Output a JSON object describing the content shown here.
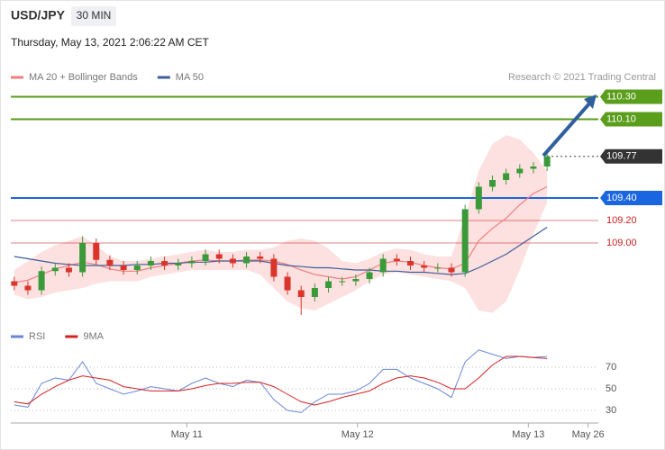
{
  "header": {
    "symbol": "USD/JPY",
    "interval": "30 MIN",
    "datetime": "Thursday, May 13, 2021 2:06:22 AM CET",
    "credit": "Research © 2021 Trading Central"
  },
  "chart_data": [
    {
      "type": "candlestick",
      "x": [
        9.99,
        10.07,
        10.15,
        10.23,
        10.31,
        10.39,
        10.47,
        10.55,
        10.63,
        10.71,
        10.79,
        10.87,
        10.95,
        11.03,
        11.11,
        11.19,
        11.27,
        11.35,
        11.43,
        11.51,
        11.59,
        11.67,
        11.75,
        11.83,
        11.91,
        11.99,
        12.07,
        12.15,
        12.23,
        12.31,
        12.39,
        12.47,
        12.55,
        12.63,
        12.71,
        12.79,
        12.87,
        12.95,
        13.03,
        13.11
      ],
      "xlim": [
        9.97,
        13.41
      ],
      "open": [
        108.66,
        108.62,
        108.58,
        108.75,
        108.78,
        108.74,
        109.0,
        108.85,
        108.8,
        108.76,
        108.8,
        108.84,
        108.8,
        108.82,
        108.84,
        108.9,
        108.86,
        108.82,
        108.88,
        108.86,
        108.7,
        108.58,
        108.52,
        108.6,
        108.66,
        108.66,
        108.68,
        108.74,
        108.86,
        108.84,
        108.8,
        108.78,
        108.78,
        108.74,
        109.3,
        109.5,
        109.56,
        109.62,
        109.66,
        109.68
      ],
      "high": [
        108.7,
        108.66,
        108.79,
        108.82,
        108.82,
        109.06,
        109.04,
        108.89,
        108.84,
        108.84,
        108.88,
        108.88,
        108.86,
        108.88,
        108.94,
        108.94,
        108.9,
        108.92,
        108.92,
        108.9,
        108.74,
        108.62,
        108.64,
        108.7,
        108.7,
        108.72,
        108.78,
        108.9,
        108.9,
        108.88,
        108.84,
        108.82,
        108.82,
        109.34,
        109.54,
        109.6,
        109.66,
        109.7,
        109.72,
        109.8
      ],
      "low": [
        108.58,
        108.54,
        108.54,
        108.71,
        108.7,
        108.7,
        108.81,
        108.76,
        108.72,
        108.72,
        108.76,
        108.76,
        108.76,
        108.78,
        108.8,
        108.82,
        108.78,
        108.78,
        108.82,
        108.66,
        108.54,
        108.36,
        108.48,
        108.56,
        108.62,
        108.62,
        108.64,
        108.7,
        108.8,
        108.76,
        108.74,
        108.74,
        108.7,
        108.7,
        109.26,
        109.46,
        109.52,
        109.58,
        109.62,
        109.64
      ],
      "close": [
        108.62,
        108.58,
        108.75,
        108.78,
        108.74,
        109.0,
        108.85,
        108.8,
        108.76,
        108.8,
        108.84,
        108.8,
        108.82,
        108.84,
        108.9,
        108.86,
        108.82,
        108.88,
        108.86,
        108.7,
        108.58,
        108.52,
        108.6,
        108.66,
        108.66,
        108.68,
        108.74,
        108.86,
        108.84,
        108.8,
        108.78,
        108.78,
        108.74,
        109.3,
        109.5,
        109.56,
        109.62,
        109.66,
        109.68,
        109.77
      ],
      "up_color": "#3a9a3a",
      "down_color": "#d9352b",
      "ylim": [
        108.4,
        110.4
      ],
      "series": [
        {
          "name": "MA 20 + Bollinger Bands",
          "color": "#f08080",
          "band_color": "#fde0e0",
          "values": [
            108.65,
            108.67,
            108.72,
            108.77,
            108.8,
            108.83,
            108.81,
            108.77,
            108.75,
            108.75,
            108.78,
            108.8,
            108.82,
            108.84,
            108.85,
            108.84,
            108.84,
            108.85,
            108.85,
            108.84,
            108.81,
            108.76,
            108.72,
            108.7,
            108.68,
            108.7,
            108.76,
            108.82,
            108.84,
            108.83,
            108.8,
            108.78,
            108.77,
            108.82,
            109.02,
            109.13,
            109.22,
            109.34,
            109.44,
            109.5
          ],
          "upper": [
            108.76,
            108.84,
            108.92,
            108.98,
            109.02,
            109.06,
            108.98,
            108.88,
            108.84,
            108.84,
            108.86,
            108.88,
            108.9,
            108.92,
            108.94,
            108.92,
            108.92,
            108.94,
            108.94,
            108.96,
            109.02,
            109.04,
            109.02,
            108.95,
            108.84,
            108.82,
            108.86,
            108.92,
            108.95,
            108.94,
            108.9,
            108.88,
            108.88,
            109.24,
            109.64,
            109.88,
            109.96,
            109.92,
            109.8,
            109.64
          ],
          "lower": [
            108.54,
            108.5,
            108.52,
            108.56,
            108.58,
            108.6,
            108.64,
            108.66,
            108.66,
            108.66,
            108.7,
            108.72,
            108.74,
            108.76,
            108.76,
            108.76,
            108.76,
            108.76,
            108.72,
            108.6,
            108.48,
            108.42,
            108.4,
            108.46,
            108.52,
            108.58,
            108.66,
            108.72,
            108.74,
            108.72,
            108.7,
            108.68,
            108.66,
            108.6,
            108.4,
            108.38,
            108.48,
            108.76,
            109.08,
            109.36
          ]
        },
        {
          "name": "MA 50",
          "color": "#3d5f99",
          "values": [
            108.88,
            108.86,
            108.84,
            108.82,
            108.81,
            108.8,
            108.8,
            108.8,
            108.8,
            108.81,
            108.81,
            108.82,
            108.82,
            108.83,
            108.83,
            108.84,
            108.84,
            108.84,
            108.84,
            108.82,
            108.8,
            108.79,
            108.78,
            108.78,
            108.77,
            108.76,
            108.76,
            108.75,
            108.75,
            108.74,
            108.74,
            108.73,
            108.72,
            108.73,
            108.78,
            108.84,
            108.9,
            108.98,
            109.06,
            109.14
          ]
        }
      ],
      "levels": [
        {
          "value": 110.3,
          "label": "110.30",
          "color": "#5a9e1c",
          "box": true
        },
        {
          "value": 110.1,
          "label": "110.10",
          "color": "#5a9e1c",
          "box": true
        },
        {
          "value": 109.77,
          "label": "109.77",
          "color": "#333333",
          "box": true,
          "dotted": true
        },
        {
          "value": 109.4,
          "label": "109.40",
          "color": "#1a66e0",
          "box": true
        },
        {
          "value": 109.2,
          "label": "109.20",
          "color": "#cc2020",
          "box": false
        },
        {
          "value": 109.0,
          "label": "109.00",
          "color": "#cc2020",
          "box": false
        }
      ]
    },
    {
      "type": "line",
      "ylim": [
        22.5,
        87.5
      ],
      "yticks": [
        30,
        50,
        70
      ],
      "xticks": [
        {
          "value": 11,
          "label": "May 11"
        },
        {
          "value": 12,
          "label": "May 12"
        },
        {
          "value": 13,
          "label": "May 13"
        },
        {
          "value": 13.35,
          "label": "May 26"
        }
      ],
      "series": [
        {
          "name": "RSI",
          "color": "#6a86d6",
          "values": [
            35,
            33,
            55,
            60,
            58,
            75,
            55,
            50,
            45,
            48,
            52,
            50,
            48,
            55,
            60,
            55,
            52,
            58,
            56,
            40,
            30,
            28,
            38,
            45,
            45,
            48,
            55,
            68,
            68,
            60,
            55,
            50,
            42,
            75,
            86,
            82,
            78,
            80,
            79,
            80
          ]
        },
        {
          "name": "9MA",
          "color": "#d62020",
          "values": [
            38,
            36,
            45,
            52,
            58,
            62,
            60,
            58,
            52,
            50,
            48,
            48,
            48,
            50,
            53,
            55,
            55,
            56,
            56,
            52,
            45,
            38,
            35,
            38,
            42,
            45,
            48,
            55,
            60,
            62,
            60,
            56,
            50,
            50,
            60,
            72,
            80,
            80,
            79,
            78
          ]
        }
      ]
    }
  ]
}
